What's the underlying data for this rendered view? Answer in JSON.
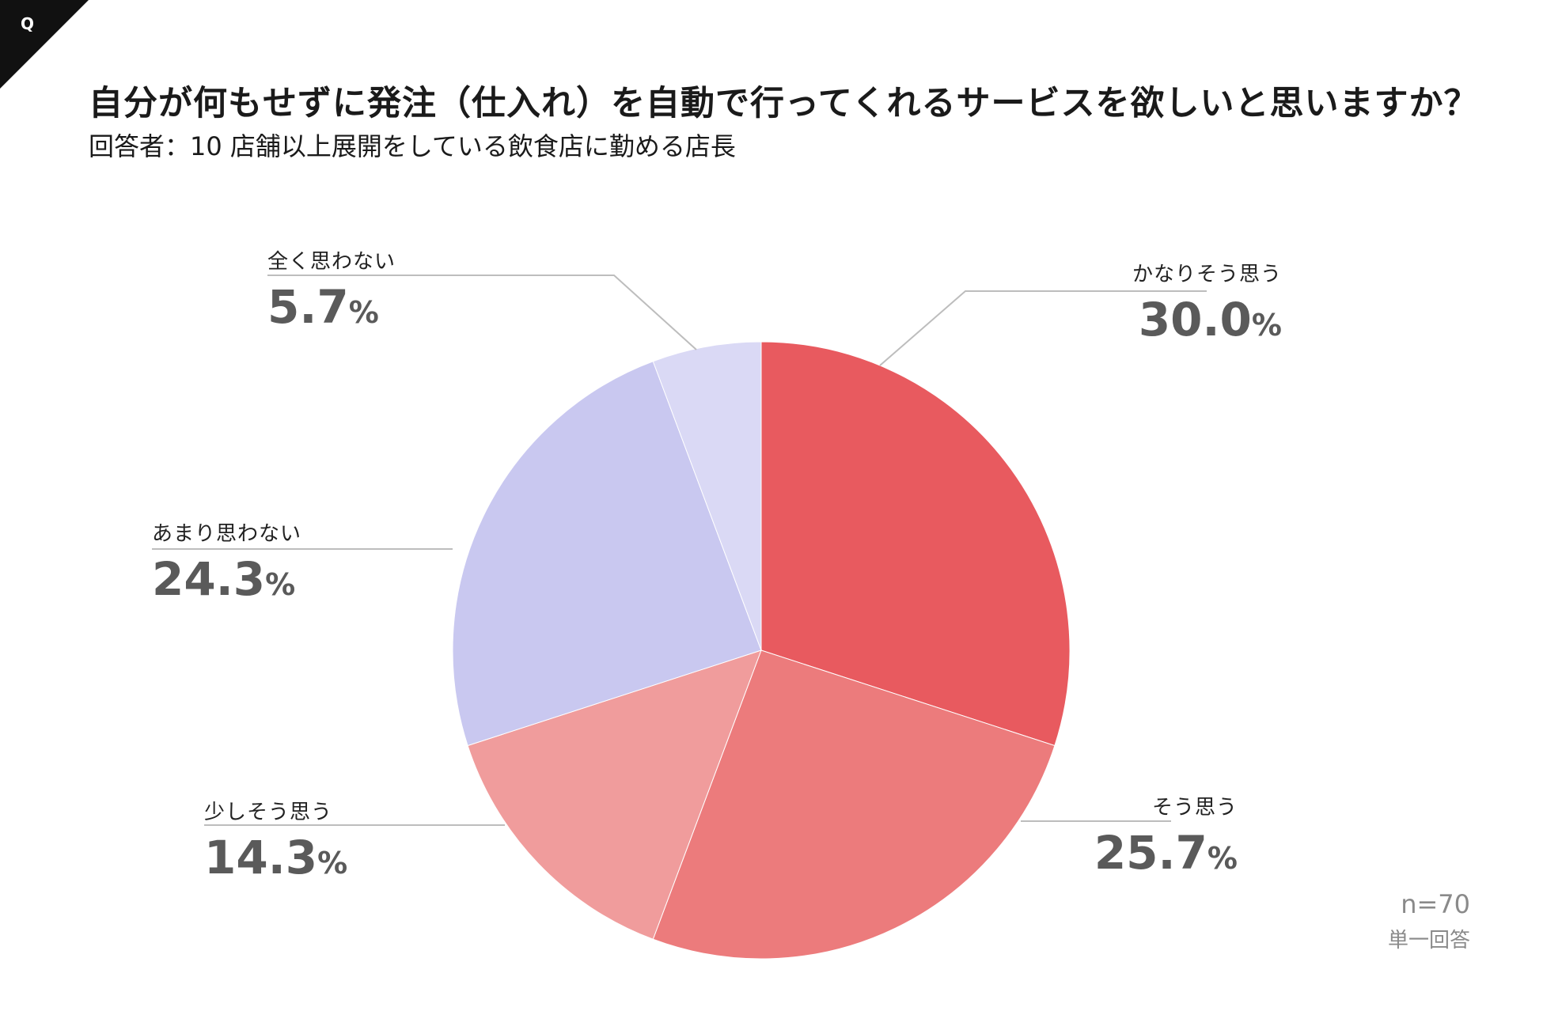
{
  "question_badge": "Q",
  "title": "自分が何もせずに発注（仕入れ）を自動で行ってくれるサービスを欲しいと思いますか？",
  "subtitle": "回答者：10 店舗以上展開をしている飲食店に勤める店長",
  "sample": "n=70",
  "answer_type": "単一回答",
  "unit": "%",
  "chart_data": {
    "type": "pie",
    "title": "自分が何もせずに発注（仕入れ）を自動で行ってくれるサービスを欲しいと思いますか？",
    "start": "12 o'clock, clockwise",
    "slices": [
      {
        "label": "かなりそう思う",
        "value": 30.0,
        "display": "30.0",
        "color": "#E85A5F"
      },
      {
        "label": "そう思う",
        "value": 25.7,
        "display": "25.7",
        "color": "#EC7B7C"
      },
      {
        "label": "少しそう思う",
        "value": 14.3,
        "display": "14.3",
        "color": "#F09C9C"
      },
      {
        "label": "あまり思わない",
        "value": 24.3,
        "display": "24.3",
        "color": "#C9C8F0"
      },
      {
        "label": "全く思わない",
        "value": 5.7,
        "display": "5.7",
        "color": "#DAD9F5"
      }
    ]
  }
}
